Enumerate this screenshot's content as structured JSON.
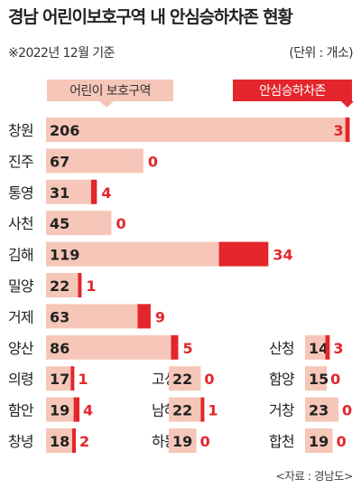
{
  "title": "경남 어린이보호구역 내 안심승하차존 현황",
  "note": "※2022년 12월 기준",
  "unit": "(단위 : 개소)",
  "source": "<자료 : 경남도>",
  "colors": {
    "zone_bar": "#f6c7b8",
    "safe_bar": "#e3262b",
    "zone_legend_bg": "#f6c7b8",
    "safe_legend_bg": "#e3262b"
  },
  "chart_data": {
    "type": "bar",
    "orientation": "horizontal",
    "title": "경남 어린이보호구역 내 안심승하차존 현황",
    "series": [
      {
        "name": "어린이 보호구역",
        "color": "#f6c7b8"
      },
      {
        "name": "안심승하차존",
        "color": "#e3262b"
      }
    ],
    "main": [
      {
        "region": "창원",
        "zones": 206,
        "safe": 3
      },
      {
        "region": "진주",
        "zones": 67,
        "safe": 0
      },
      {
        "region": "통영",
        "zones": 31,
        "safe": 4
      },
      {
        "region": "사천",
        "zones": 45,
        "safe": 0
      },
      {
        "region": "김해",
        "zones": 119,
        "safe": 34
      },
      {
        "region": "밀양",
        "zones": 22,
        "safe": 1
      },
      {
        "region": "거제",
        "zones": 63,
        "safe": 9
      },
      {
        "region": "양산",
        "zones": 86,
        "safe": 5
      }
    ],
    "small": [
      {
        "region": "산청",
        "zones": 14,
        "safe": 3
      },
      {
        "region": "의령",
        "zones": 17,
        "safe": 1
      },
      {
        "region": "고성",
        "zones": 22,
        "safe": 0
      },
      {
        "region": "함양",
        "zones": 15,
        "safe": 0
      },
      {
        "region": "함안",
        "zones": 19,
        "safe": 4
      },
      {
        "region": "남해",
        "zones": 22,
        "safe": 1
      },
      {
        "region": "거창",
        "zones": 23,
        "safe": 0
      },
      {
        "region": "창녕",
        "zones": 18,
        "safe": 2
      },
      {
        "region": "하동",
        "zones": 19,
        "safe": 0
      },
      {
        "region": "합천",
        "zones": 19,
        "safe": 0
      }
    ]
  }
}
